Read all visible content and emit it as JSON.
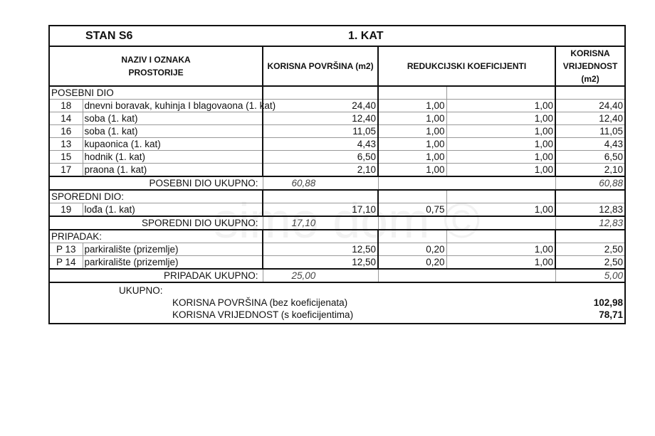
{
  "title": {
    "left": "STAN S6",
    "right": "1. KAT"
  },
  "headers": {
    "name": "NAZIV I OZNAKA PROSTORIJE",
    "area": "KORISNA POVRŠINA (m2)",
    "coef": "REDUKCIJSKI KOEFICIJENTI",
    "value": "KORISNA VRIJEDNOST (m2)"
  },
  "posebni": {
    "label": "POSEBNI DIO",
    "rows": [
      {
        "no": "18",
        "name": "dnevni boravak, kuhinja I blagovaona (1. kat)",
        "area": "24,40",
        "k1": "1,00",
        "k2": "1,00",
        "value": "24,40"
      },
      {
        "no": "14",
        "name": "soba (1. kat)",
        "area": "12,40",
        "k1": "1,00",
        "k2": "1,00",
        "value": "12,40"
      },
      {
        "no": "16",
        "name": "soba (1. kat)",
        "area": "11,05",
        "k1": "1,00",
        "k2": "1,00",
        "value": "11,05"
      },
      {
        "no": "13",
        "name": "kupaonica (1. kat)",
        "area": "4,43",
        "k1": "1,00",
        "k2": "1,00",
        "value": "4,43"
      },
      {
        "no": "15",
        "name": "hodnik (1. kat)",
        "area": "6,50",
        "k1": "1,00",
        "k2": "1,00",
        "value": "6,50"
      },
      {
        "no": "17",
        "name": "praona (1. kat)",
        "area": "2,10",
        "k1": "1,00",
        "k2": "1,00",
        "value": "2,10"
      }
    ],
    "total_label": "POSEBNI DIO UKUPNO:",
    "total_area": "60,88",
    "total_value": "60,88"
  },
  "sporedni": {
    "label": "SPOREDNI DIO:",
    "rows": [
      {
        "no": "19",
        "name": "lođa  (1. kat)",
        "area": "17,10",
        "k1": "0,75",
        "k2": "1,00",
        "value": "12,83"
      }
    ],
    "total_label": "SPOREDNI DIO UKUPNO:",
    "total_area": "17,10",
    "total_value": "12,83"
  },
  "pripadak": {
    "label": "PRIPADAK:",
    "rows": [
      {
        "no": "P 13",
        "name": "parkiralište (prizemlje)",
        "area": "12,50",
        "k1": "0,20",
        "k2": "1,00",
        "value": "2,50"
      },
      {
        "no": "P 14",
        "name": "parkiralište (prizemlje)",
        "area": "12,50",
        "k1": "0,20",
        "k2": "1,00",
        "value": "2,50"
      }
    ],
    "total_label": "PRIPADAK UKUPNO:",
    "total_area": "25,00",
    "total_value": "5,00"
  },
  "ukupno": {
    "label": "UKUPNO:",
    "area_label": "KORISNA POVRŠINA (bez koeficijenata)",
    "area_value": "102,98",
    "value_label": "KORISNA VRIJEDNOST (s koeficijentima)",
    "value_value": "78,71"
  },
  "watermark": "simo dom ©"
}
